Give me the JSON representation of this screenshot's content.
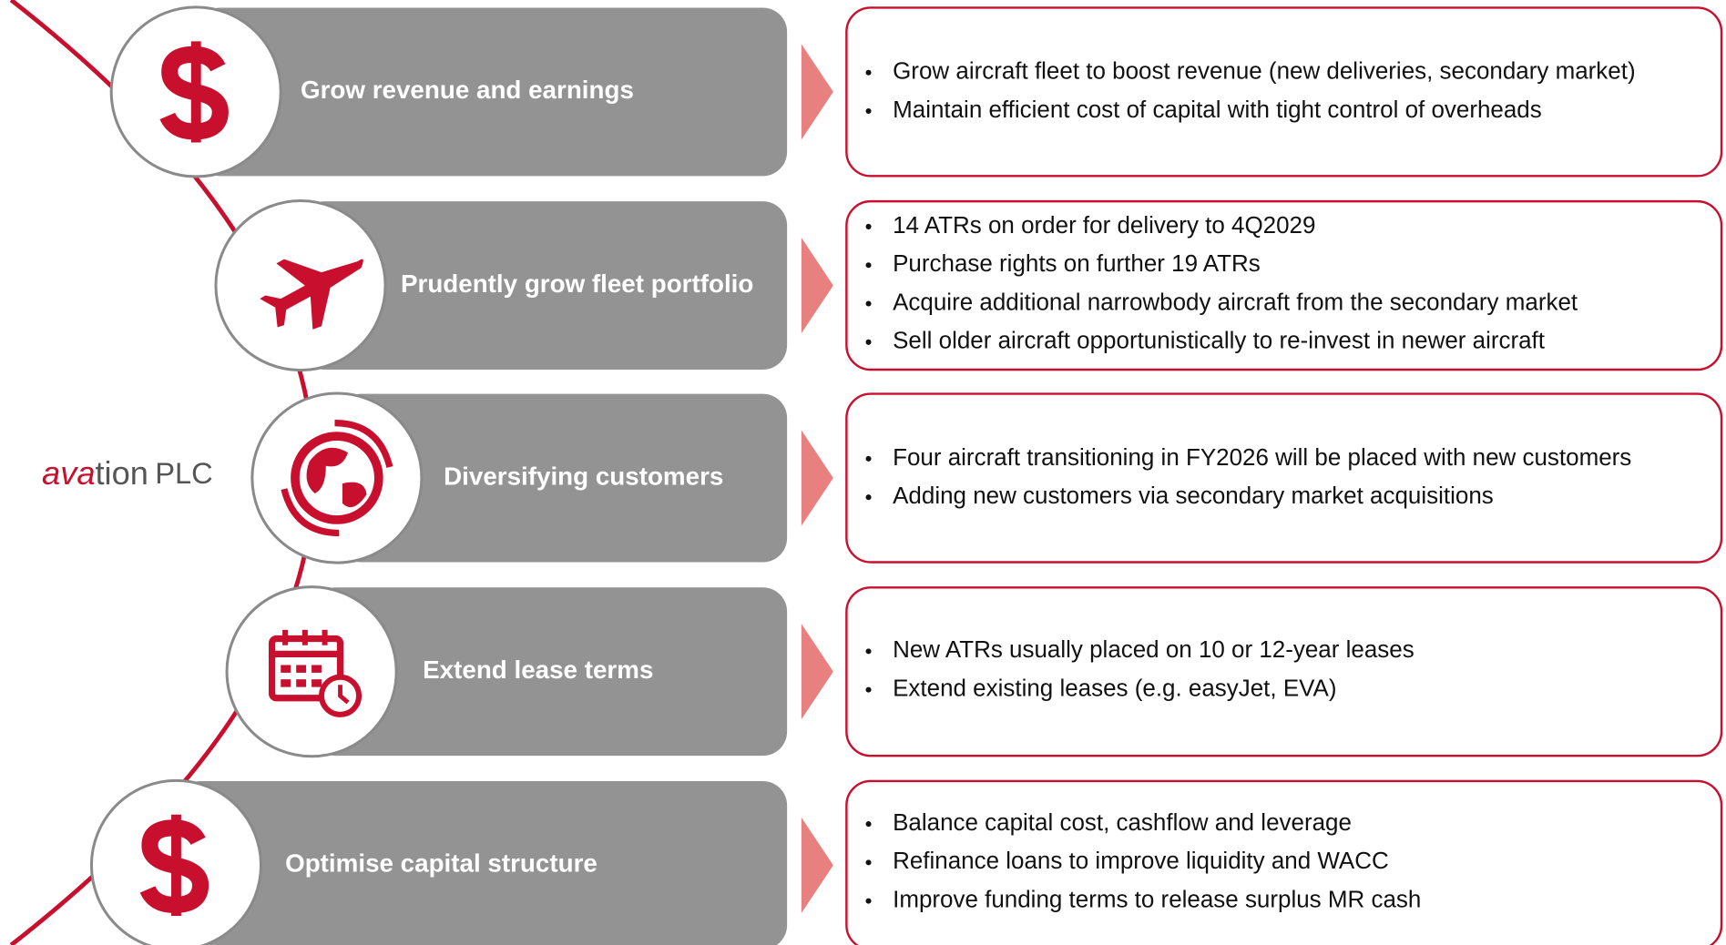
{
  "logo": {
    "brand_red": "ava",
    "brand_rest": "tion",
    "suffix": "PLC"
  },
  "rows": [
    {
      "title": "Grow revenue and earnings",
      "bullets": [
        "Grow aircraft fleet to boost revenue (new deliveries, secondary market)",
        "Maintain efficient cost of capital with tight control of overheads"
      ]
    },
    {
      "title": "Prudently grow fleet portfolio",
      "bullets": [
        "14 ATRs on order for delivery to 4Q2029",
        "Purchase rights on further 19 ATRs",
        "Acquire additional narrowbody aircraft from the secondary market",
        "Sell older aircraft opportunistically to re-invest in newer aircraft"
      ]
    },
    {
      "title": "Diversifying customers",
      "bullets": [
        "Four aircraft transitioning in FY2026 will be placed with new customers",
        "Adding new customers via secondary market acquisitions"
      ]
    },
    {
      "title": "Extend lease terms",
      "bullets": [
        "New ATRs usually placed on 10 or 12-year leases",
        "Extend existing leases (e.g. easyJet, EVA)"
      ]
    },
    {
      "title": "Optimise capital structure",
      "bullets": [
        "Balance capital cost, cashflow and leverage",
        "Refinance loans to improve liquidity and WACC",
        "Improve funding terms to release surplus MR cash"
      ]
    }
  ]
}
